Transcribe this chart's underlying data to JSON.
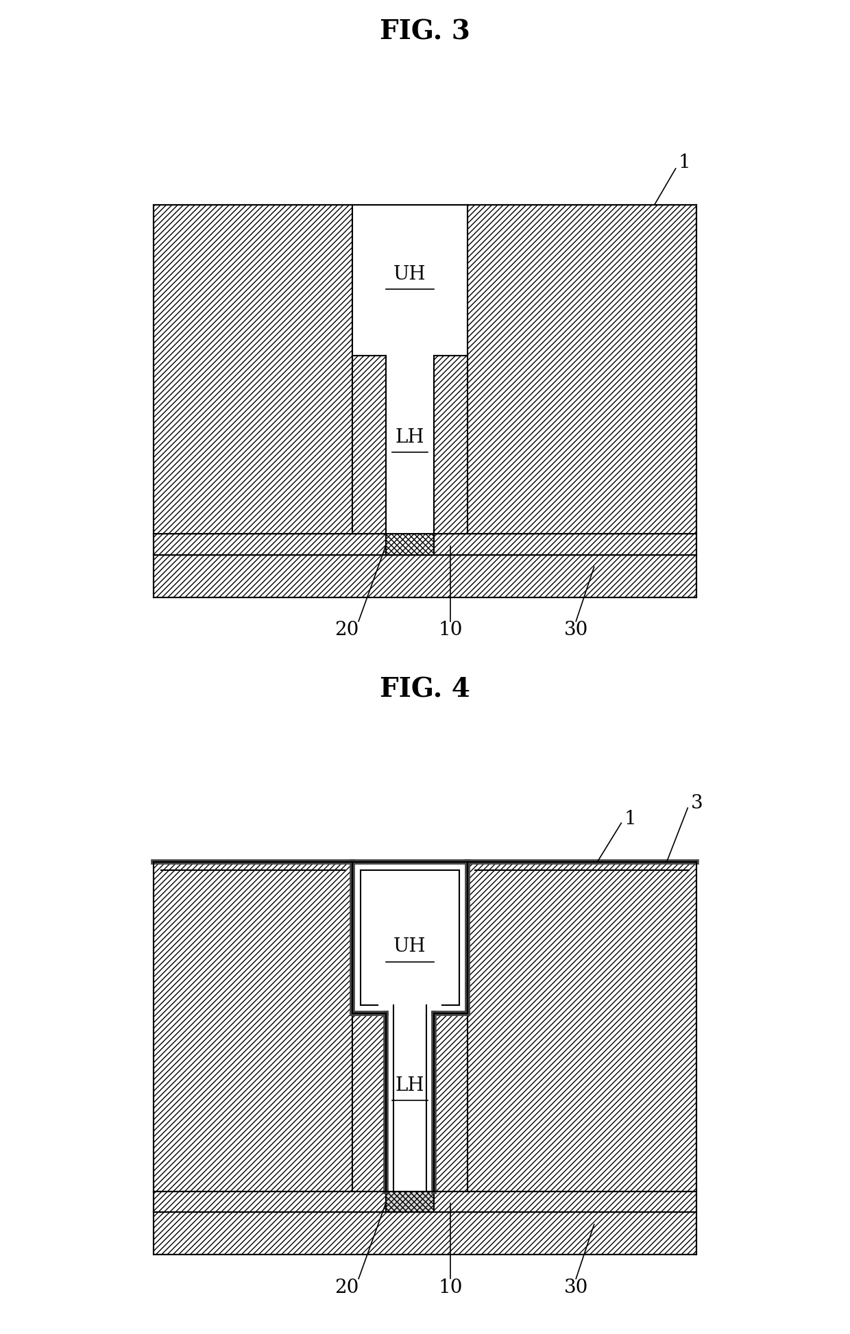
{
  "fig3_title": "FIG. 3",
  "fig4_title": "FIG. 4",
  "bg_color": "#ffffff",
  "hatch_diag": "////",
  "hatch_cross": "xxxx",
  "line_color": "#000000",
  "fill_color": "#ffffff",
  "hatch_color": "#000000",
  "label_1": "1",
  "label_3": "3",
  "label_10": "10",
  "label_20": "20",
  "label_30": "30",
  "label_UH": "UH",
  "label_LH": "LH",
  "title_fontsize": 28,
  "label_fontsize": 20,
  "annotation_fontsize": 20
}
